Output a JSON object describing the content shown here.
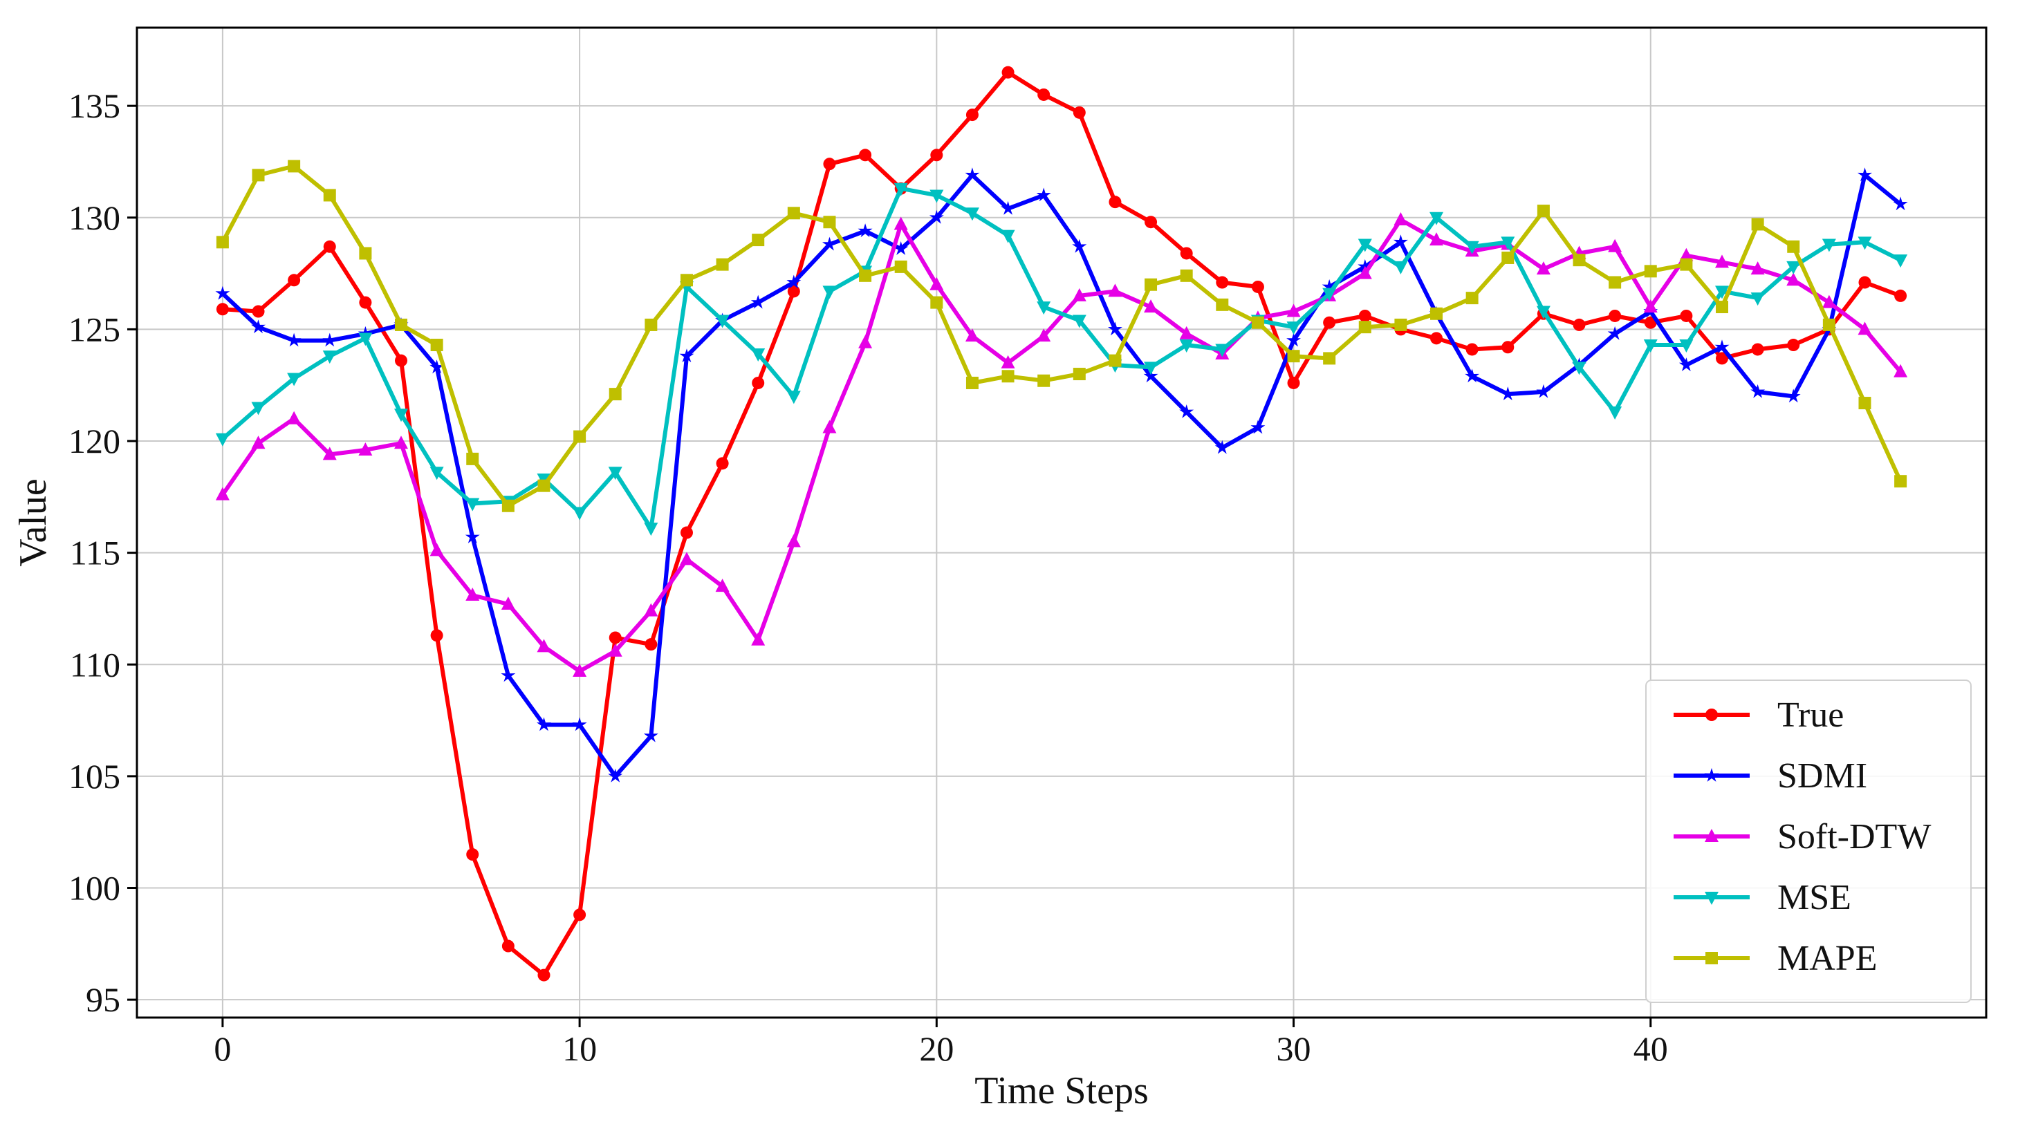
{
  "chart_data": {
    "type": "line",
    "title": "",
    "xlabel": "Time Steps",
    "ylabel": "Value",
    "xlim": [
      -2.4,
      49.4
    ],
    "ylim": [
      94.2,
      138.5
    ],
    "xticks": [
      0,
      10,
      20,
      30,
      40
    ],
    "yticks": [
      95,
      100,
      105,
      110,
      115,
      120,
      125,
      130,
      135
    ],
    "grid": true,
    "legend": {
      "position": "bottom-right",
      "entries": [
        "True",
        "SDMI",
        "Soft-DTW",
        "MSE",
        "MAPE"
      ]
    },
    "x": [
      0,
      1,
      2,
      3,
      4,
      5,
      6,
      7,
      8,
      9,
      10,
      11,
      12,
      13,
      14,
      15,
      16,
      17,
      18,
      19,
      20,
      21,
      22,
      23,
      24,
      25,
      26,
      27,
      28,
      29,
      30,
      31,
      32,
      33,
      34,
      35,
      36,
      37,
      38,
      39,
      40,
      41,
      42,
      43,
      44,
      45,
      46,
      47
    ],
    "series": [
      {
        "name": "True",
        "color": "#ff0000",
        "marker": "circle",
        "values": [
          125.9,
          125.8,
          127.2,
          128.7,
          126.2,
          123.6,
          111.3,
          101.5,
          97.4,
          96.1,
          98.8,
          111.2,
          110.9,
          115.9,
          119.0,
          122.6,
          126.7,
          132.4,
          132.8,
          131.3,
          132.8,
          134.6,
          136.5,
          135.5,
          134.7,
          130.7,
          129.8,
          128.4,
          127.1,
          126.9,
          122.6,
          125.3,
          125.6,
          125.0,
          124.6,
          124.1,
          124.2,
          125.7,
          125.2,
          125.6,
          125.3,
          125.6,
          123.7,
          124.1,
          124.3,
          125.0,
          127.1,
          126.5
        ]
      },
      {
        "name": "SDMI",
        "color": "#0000ff",
        "marker": "star",
        "values": [
          126.6,
          125.1,
          124.5,
          124.5,
          124.8,
          125.2,
          123.3,
          115.7,
          109.5,
          107.3,
          107.3,
          105.0,
          106.8,
          123.8,
          125.4,
          126.2,
          127.1,
          128.8,
          129.4,
          128.6,
          130.0,
          131.9,
          130.4,
          131.0,
          128.7,
          125.0,
          122.9,
          121.3,
          119.7,
          120.6,
          124.5,
          126.9,
          127.8,
          128.9,
          125.7,
          122.9,
          122.1,
          122.2,
          123.4,
          124.8,
          125.8,
          123.4,
          124.2,
          122.2,
          122.0,
          125.0,
          131.9,
          130.6
        ]
      },
      {
        "name": "Soft-DTW",
        "color": "#e600e6",
        "marker": "triangle-up",
        "values": [
          117.6,
          119.9,
          121.0,
          119.4,
          119.6,
          119.9,
          115.1,
          113.1,
          112.7,
          110.8,
          109.7,
          110.6,
          112.4,
          114.7,
          113.5,
          111.1,
          115.5,
          120.6,
          124.4,
          129.7,
          127.0,
          124.7,
          123.5,
          124.7,
          126.5,
          126.7,
          126.0,
          124.8,
          123.9,
          125.5,
          125.8,
          126.5,
          127.5,
          129.9,
          129.0,
          128.5,
          128.8,
          127.7,
          128.4,
          128.7,
          126.0,
          128.3,
          128.0,
          127.7,
          127.2,
          126.2,
          125.0,
          123.1
        ]
      },
      {
        "name": "MSE",
        "color": "#00c0c0",
        "marker": "triangle-down",
        "values": [
          120.1,
          121.5,
          122.8,
          123.8,
          124.6,
          121.2,
          118.6,
          117.2,
          117.3,
          118.3,
          116.8,
          118.6,
          116.1,
          126.9,
          125.4,
          123.9,
          122.0,
          126.7,
          127.6,
          131.3,
          131.0,
          130.2,
          129.2,
          126.0,
          125.4,
          123.4,
          123.3,
          124.3,
          124.1,
          125.4,
          125.1,
          126.6,
          128.8,
          127.8,
          130.0,
          128.7,
          128.9,
          125.8,
          123.3,
          121.3,
          124.3,
          124.3,
          126.7,
          126.4,
          127.8,
          128.8,
          128.9,
          128.1
        ]
      },
      {
        "name": "MAPE",
        "color": "#bfbf00",
        "marker": "square",
        "values": [
          128.9,
          131.9,
          132.3,
          131.0,
          128.4,
          125.2,
          124.3,
          119.2,
          117.1,
          118.0,
          120.2,
          122.1,
          125.2,
          127.2,
          127.9,
          129.0,
          130.2,
          129.8,
          127.4,
          127.8,
          126.2,
          122.6,
          122.9,
          122.7,
          123.0,
          123.6,
          127.0,
          127.4,
          126.1,
          125.3,
          123.8,
          123.7,
          125.1,
          125.2,
          125.7,
          126.4,
          128.2,
          130.3,
          128.1,
          127.1,
          127.6,
          127.9,
          126.0,
          129.7,
          128.7,
          125.2,
          121.7,
          118.2
        ]
      }
    ]
  }
}
